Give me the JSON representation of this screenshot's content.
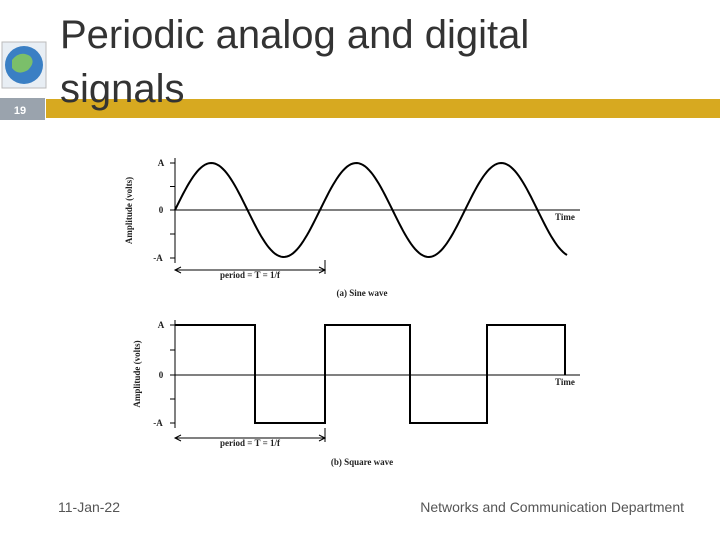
{
  "slide": {
    "number": "19",
    "title": "Periodic analog and digital signals",
    "footer": {
      "date": "11-Jan-22",
      "department": "Networks and Communication Department"
    }
  },
  "figures": [
    {
      "y_label": "Amplitude (volts)",
      "top": "A",
      "zero": "0",
      "bottom": "-A",
      "x_label": "Time",
      "period_label": "period = T = 1/f",
      "caption": "(a) Sine wave"
    },
    {
      "y_label": "Amplitude (volts)",
      "top": "A",
      "zero": "0",
      "bottom": "-A",
      "x_label": "Time",
      "period_label": "period = T = 1/f",
      "caption": "(b) Square wave"
    }
  ]
}
